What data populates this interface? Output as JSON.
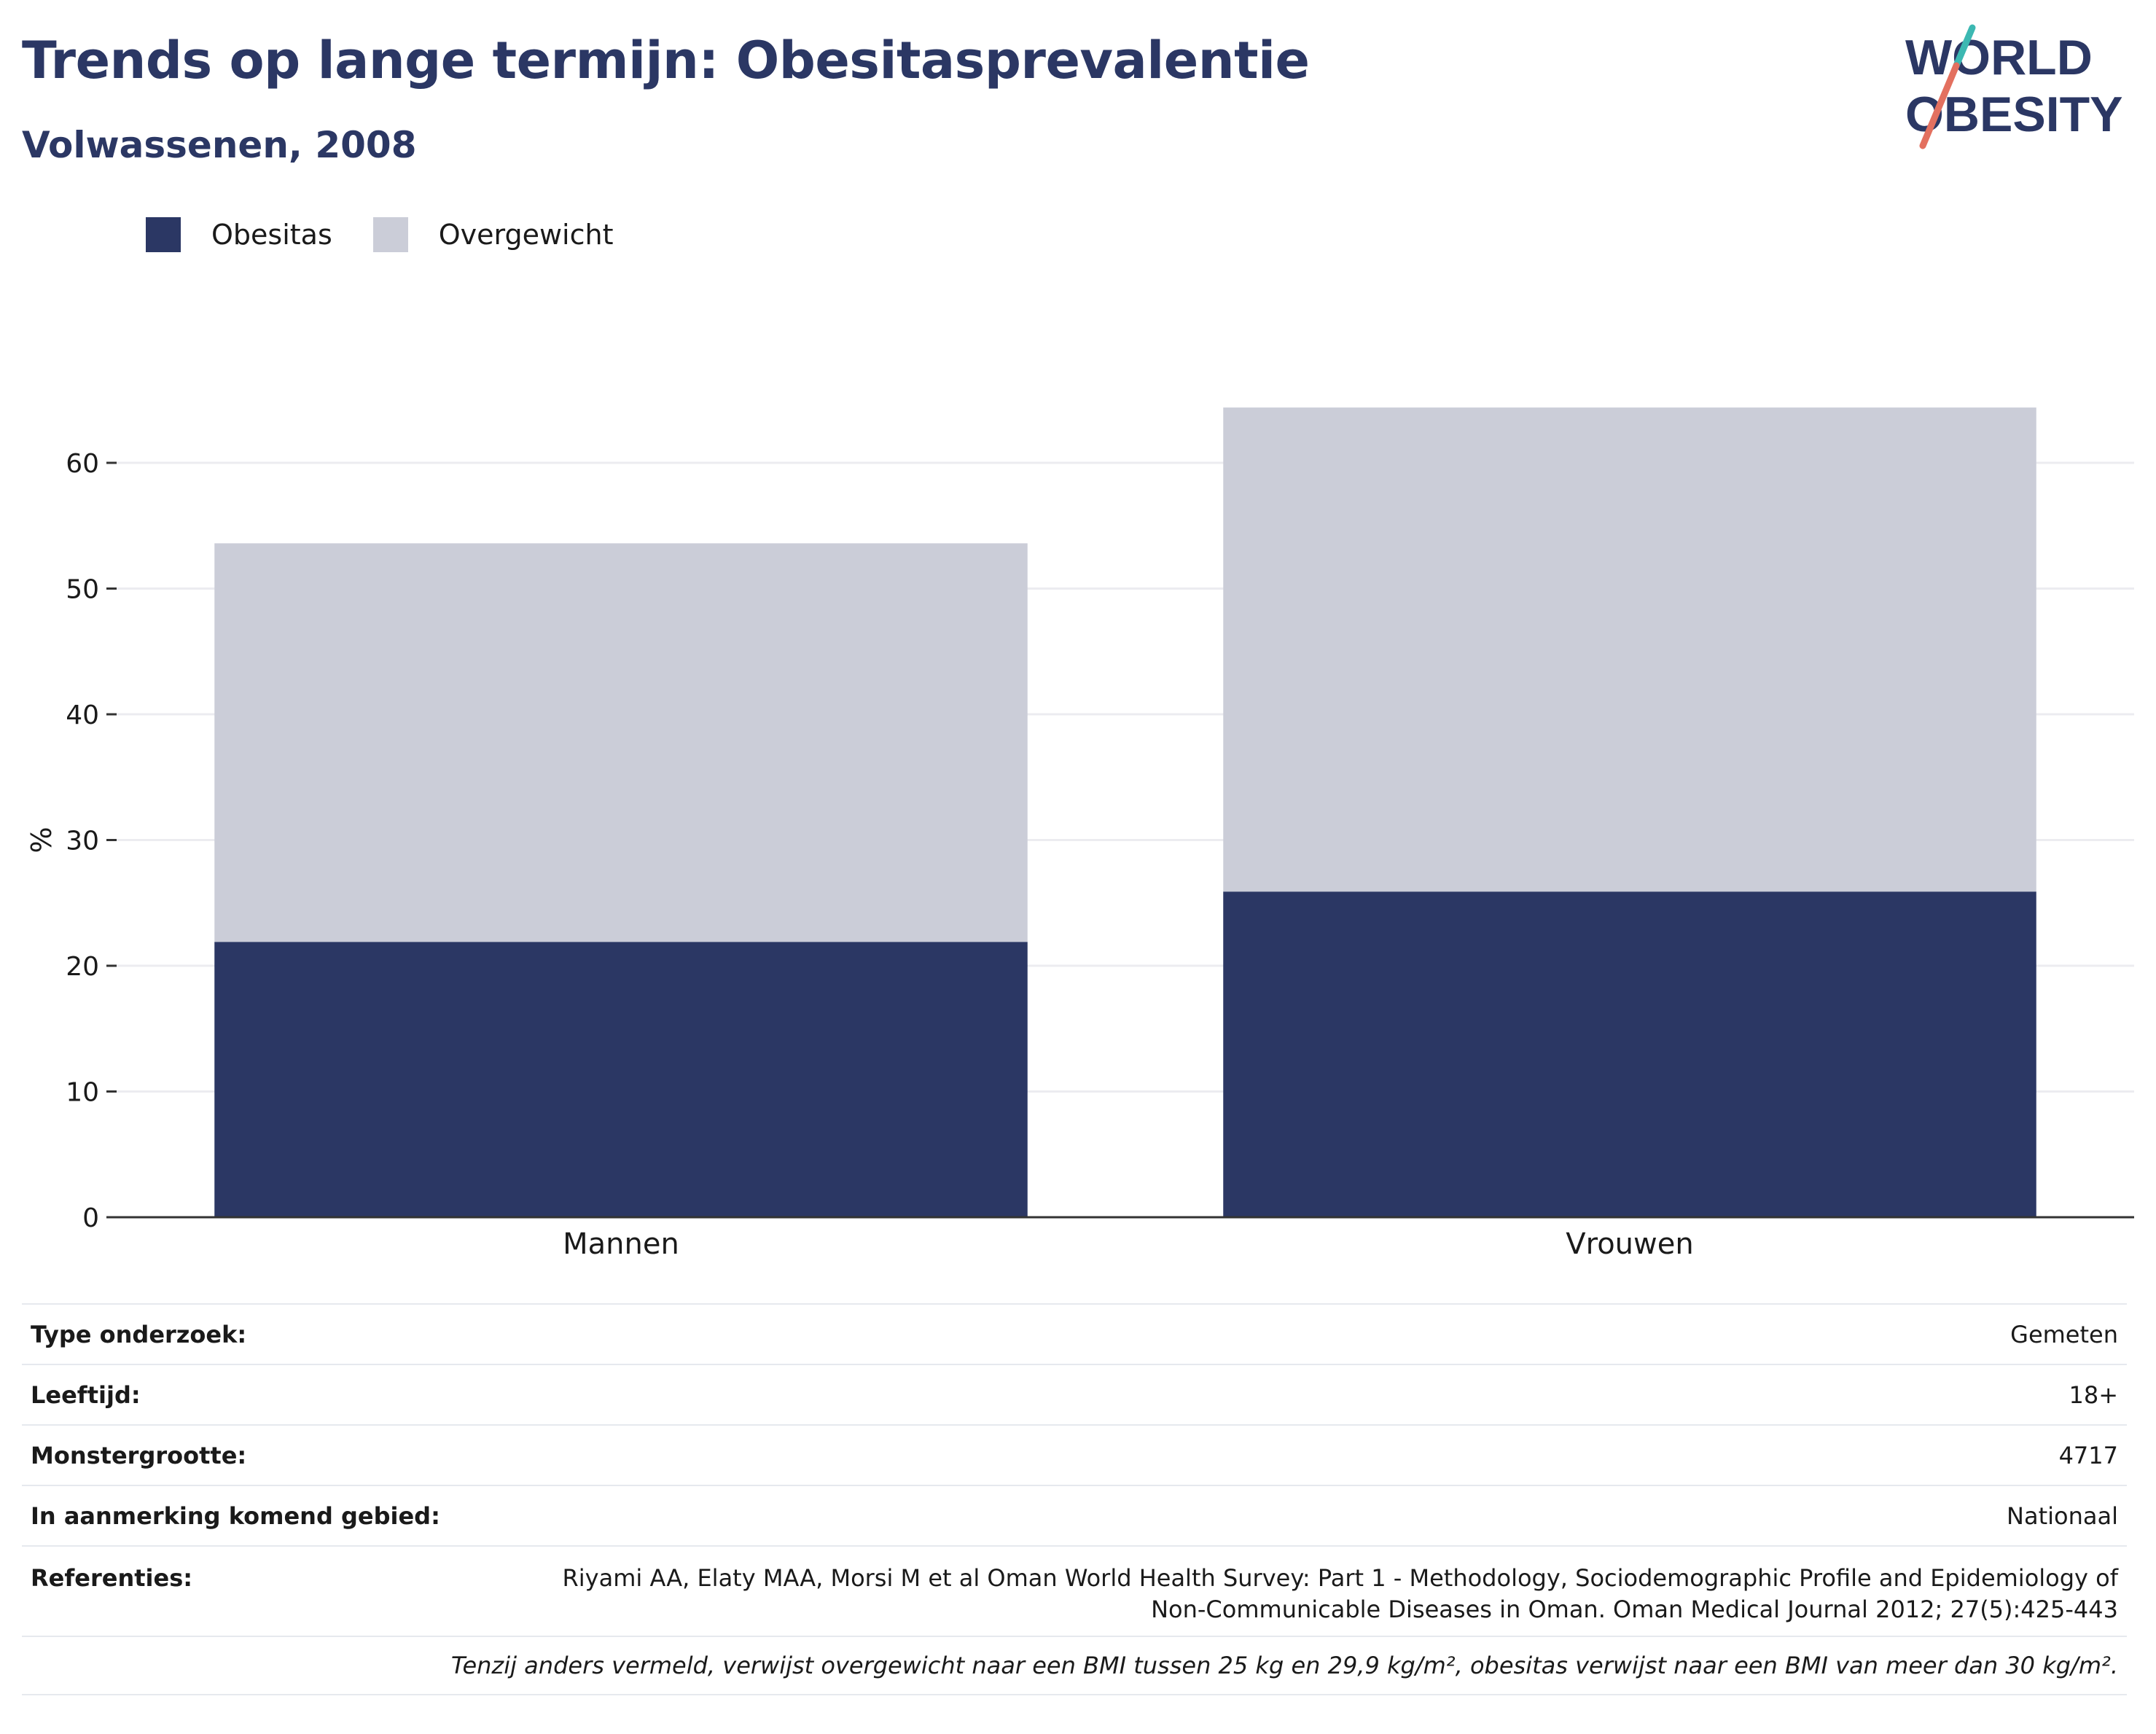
{
  "title": "Trends op lange termijn: Obesitasprevalentie",
  "subtitle": "Volwassenen, 2008",
  "logo": {
    "line1": "WORLD",
    "line2": "OBESITY"
  },
  "colors": {
    "obesitas": "#2b3764",
    "overgewicht": "#cbcdd8",
    "title": "#2b3764",
    "grid": "#ececf0",
    "logo_teal": "#3cb8b2",
    "logo_coral": "#e3705f"
  },
  "chart_data": {
    "type": "bar",
    "stacked": true,
    "categories": [
      "Mannen",
      "Vrouwen"
    ],
    "series": [
      {
        "name": "Obesitas",
        "values": [
          21.9,
          25.9
        ]
      },
      {
        "name": "Overgewicht",
        "values": [
          31.7,
          38.5
        ]
      }
    ],
    "ylabel": "%",
    "ylim": [
      0,
      70
    ],
    "yticks": [
      0,
      10,
      20,
      30,
      40,
      50,
      60
    ],
    "grid": true,
    "legend_position": "top-left"
  },
  "info": [
    {
      "label": "Type onderzoek:",
      "value": "Gemeten"
    },
    {
      "label": "Leeftijd:",
      "value": "18+"
    },
    {
      "label": "Monstergrootte:",
      "value": "4717"
    },
    {
      "label": "In aanmerking komend gebied:",
      "value": "Nationaal"
    },
    {
      "label": "Referenties:",
      "value_line1": "Riyami AA, Elaty MAA, Morsi M et al Oman World Health Survey: Part 1 - Methodology, Sociodemographic Profile and Epidemiology of",
      "value_line2": "Non-Communicable Diseases in Oman. Oman Medical Journal 2012; 27(5):425-443"
    }
  ],
  "footnote": "Tenzij anders vermeld, verwijst overgewicht naar een BMI tussen 25 kg en 29,9 kg/m², obesitas verwijst naar een BMI van meer dan 30 kg/m²."
}
